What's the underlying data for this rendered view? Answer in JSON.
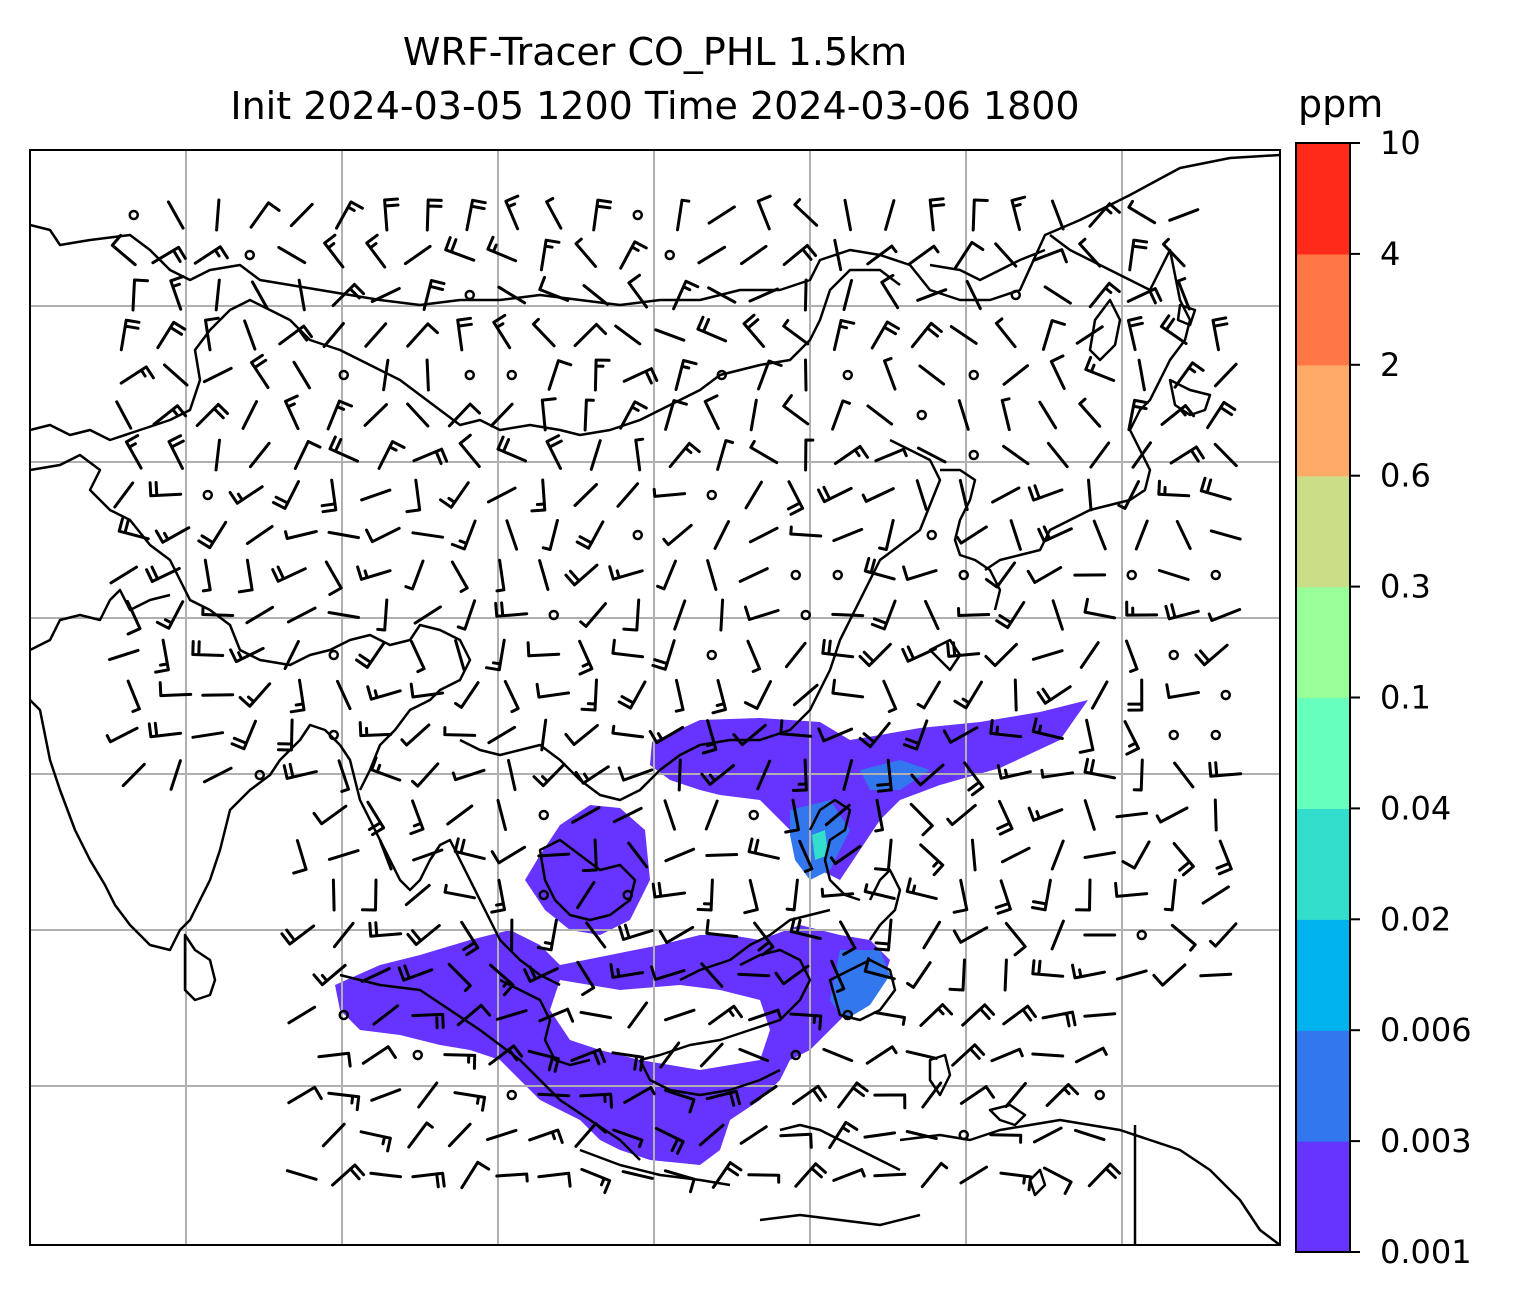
{
  "title_line1": "WRF-Tracer CO_PHL 1.5km",
  "title_line2": "Init 2024-03-05 1200 Time 2024-03-06 1800",
  "colorbar": {
    "unit": "ppm",
    "levels": [
      "0.001",
      "0.003",
      "0.006",
      "0.02",
      "0.04",
      "0.1",
      "0.3",
      "0.6",
      "2",
      "4",
      "10"
    ],
    "colors": [
      "#6633ff",
      "#3377ee",
      "#00b3ee",
      "#33ddcc",
      "#66ffbb",
      "#99ff99",
      "#ccdd88",
      "#ffaa66",
      "#ff7744",
      "#ff2a1a"
    ]
  },
  "map": {
    "gridlines": true,
    "plume_color": "#6633ff",
    "core_color": "#3377ee",
    "hotspot_color": "#33ddcc",
    "coast_color": "#000000",
    "grid_color": "#b0b0b0"
  }
}
